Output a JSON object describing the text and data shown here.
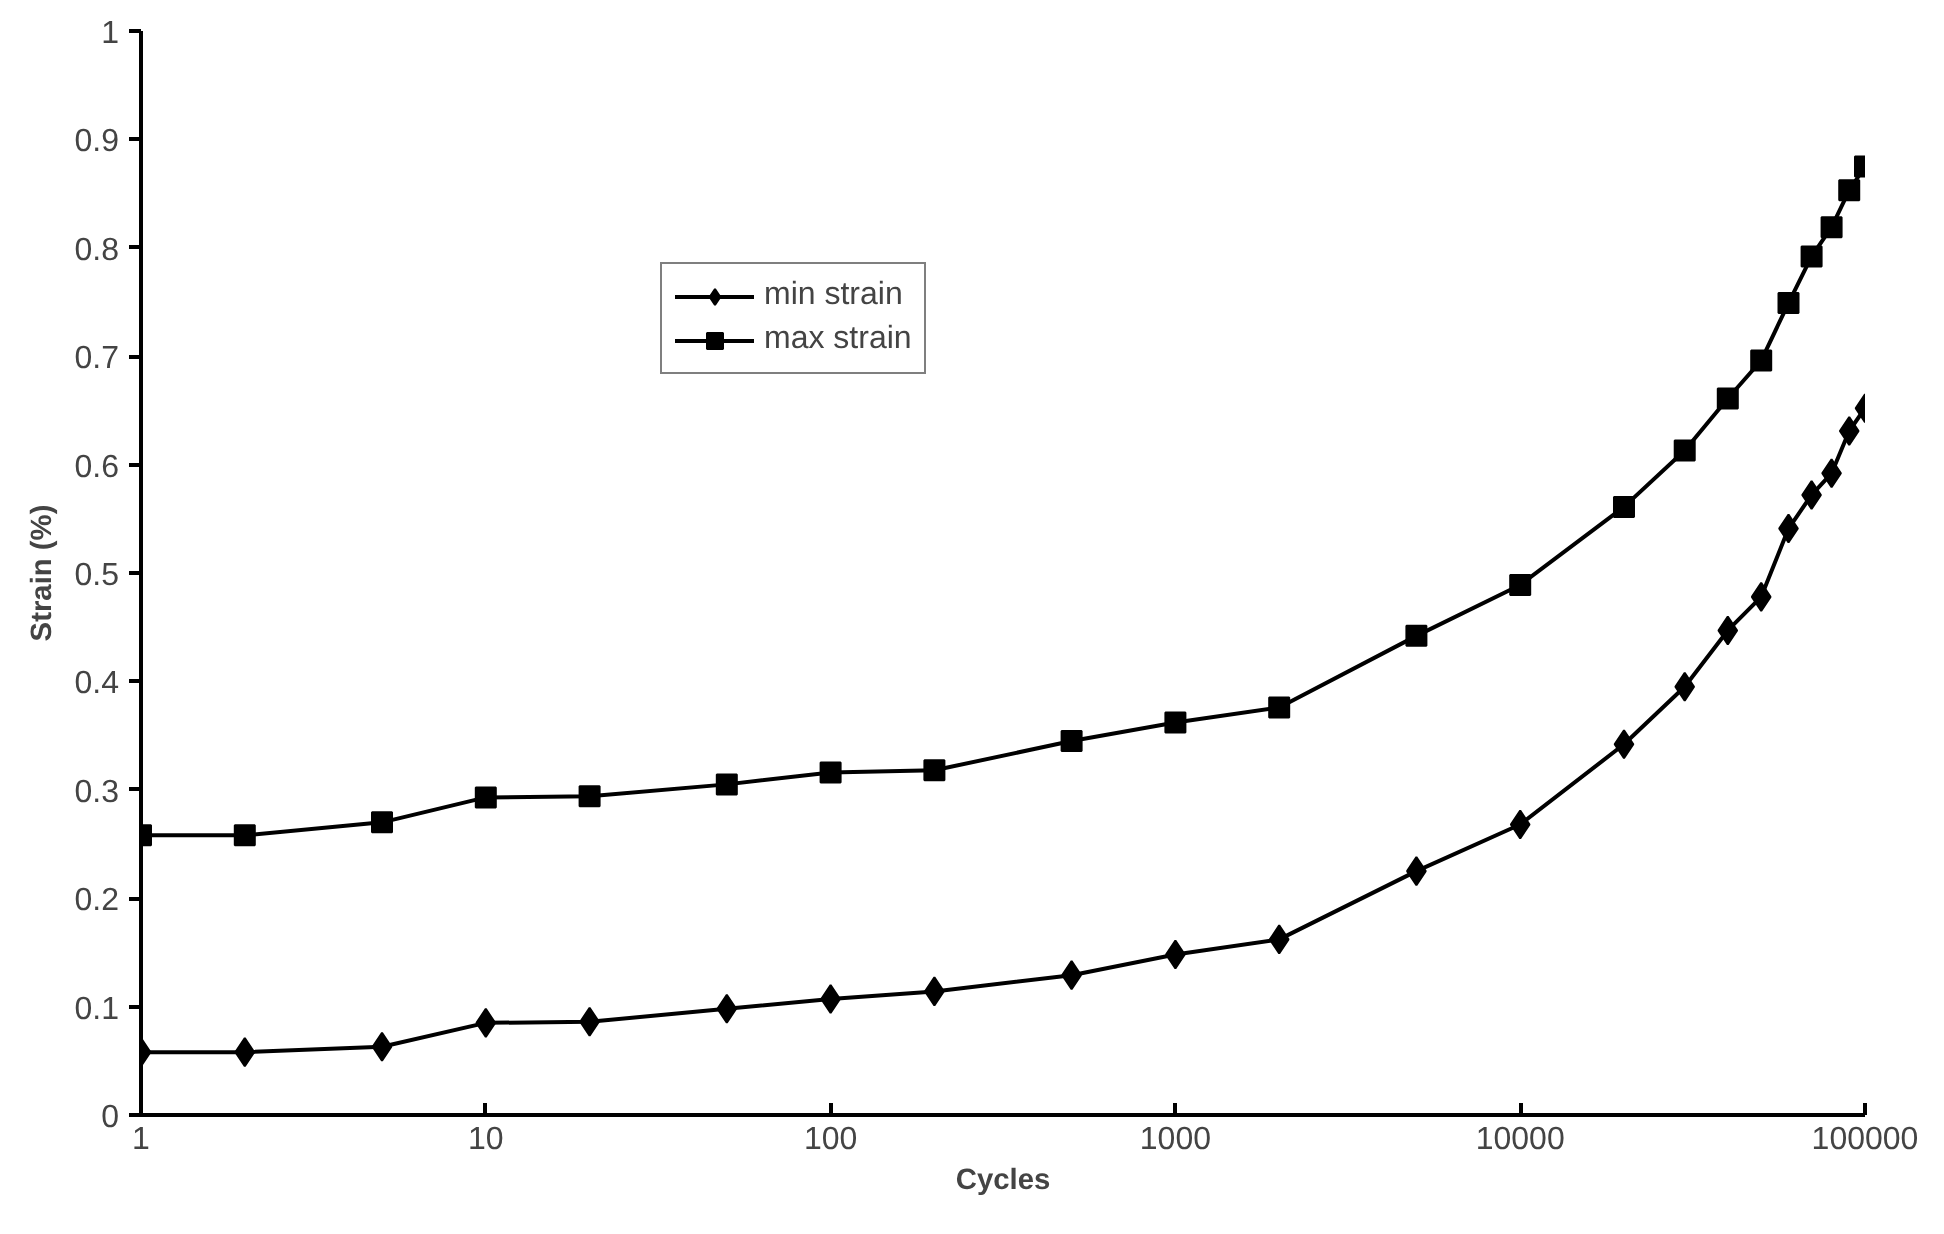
{
  "chart_data": {
    "type": "line",
    "xlabel": "Cycles",
    "ylabel": "Strain (%)",
    "log": "x",
    "grid": false,
    "legend": "top",
    "x": [
      1,
      2,
      5,
      10,
      20,
      50,
      100,
      200,
      500,
      1000,
      2000,
      5000,
      10000,
      20000,
      30000,
      40000,
      50000,
      60000,
      70000,
      80000,
      90000,
      100000
    ],
    "xlim": [
      1,
      100000
    ],
    "xticks": [
      1,
      10,
      100,
      1000,
      10000,
      100000
    ],
    "ylim": [
      0,
      1
    ],
    "yticks": [
      0,
      0.1,
      0.2,
      0.3,
      0.4,
      0.5,
      0.6,
      0.7,
      0.8,
      0.9,
      1
    ],
    "series": [
      {
        "name": "min strain",
        "color": "#000000",
        "marker": "diamond",
        "values": [
          0.058,
          0.058,
          0.063,
          0.085,
          0.086,
          0.098,
          0.107,
          0.114,
          0.129,
          0.148,
          0.162,
          0.225,
          0.268,
          0.342,
          0.395,
          0.447,
          0.478,
          0.541,
          0.572,
          0.592,
          0.631,
          0.652
        ]
      },
      {
        "name": "max strain",
        "color": "#000000",
        "marker": "square",
        "values": [
          0.258,
          0.258,
          0.27,
          0.293,
          0.294,
          0.305,
          0.316,
          0.318,
          0.345,
          0.362,
          0.376,
          0.442,
          0.489,
          0.561,
          0.613,
          0.661,
          0.696,
          0.749,
          0.792,
          0.819,
          0.853,
          0.875
        ]
      }
    ]
  }
}
